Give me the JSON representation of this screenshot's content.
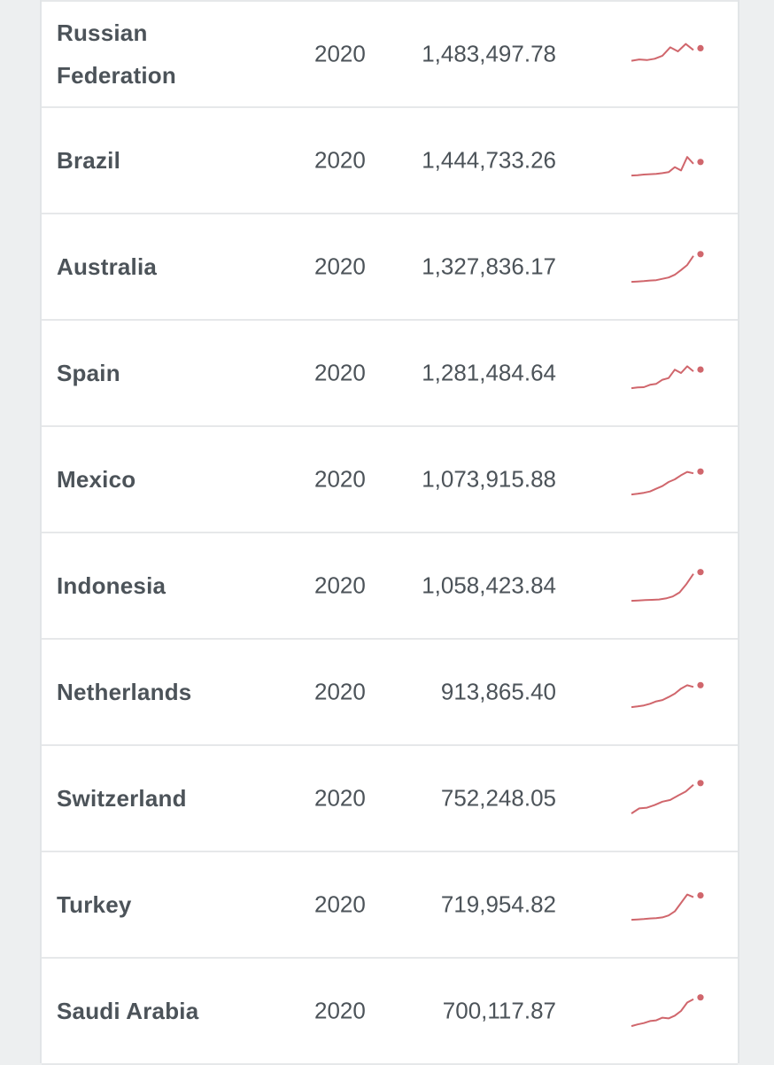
{
  "table": {
    "rows": [
      {
        "country": "Russian Federation",
        "year": "2020",
        "value": "1,483,497.78",
        "trend": [
          0.3,
          0.34,
          0.32,
          0.36,
          0.45,
          0.7,
          0.58,
          0.8,
          0.62
        ]
      },
      {
        "country": "Brazil",
        "year": "2020",
        "value": "1,444,733.26",
        "trend": [
          0.05,
          0.06,
          0.08,
          0.09,
          0.1,
          0.12,
          0.15,
          0.3,
          0.2,
          0.6,
          0.4
        ]
      },
      {
        "country": "Australia",
        "year": "2020",
        "value": "1,327,836.17",
        "trend": [
          0.05,
          0.06,
          0.07,
          0.09,
          0.1,
          0.14,
          0.18,
          0.26,
          0.4,
          0.55,
          0.82
        ]
      },
      {
        "country": "Spain",
        "year": "2020",
        "value": "1,281,484.64",
        "trend": [
          0.05,
          0.07,
          0.08,
          0.15,
          0.18,
          0.3,
          0.35,
          0.6,
          0.5,
          0.7,
          0.55
        ]
      },
      {
        "country": "Mexico",
        "year": "2020",
        "value": "1,073,915.88",
        "trend": [
          0.05,
          0.07,
          0.1,
          0.14,
          0.22,
          0.3,
          0.42,
          0.5,
          0.62,
          0.72,
          0.68
        ]
      },
      {
        "country": "Indonesia",
        "year": "2020",
        "value": "1,058,423.84",
        "trend": [
          0.05,
          0.06,
          0.07,
          0.08,
          0.09,
          0.12,
          0.18,
          0.3,
          0.55,
          0.85
        ]
      },
      {
        "country": "Netherlands",
        "year": "2020",
        "value": "913,865.40",
        "trend": [
          0.05,
          0.07,
          0.1,
          0.15,
          0.22,
          0.26,
          0.35,
          0.45,
          0.6,
          0.7,
          0.65
        ]
      },
      {
        "country": "Switzerland",
        "year": "2020",
        "value": "752,248.05",
        "trend": [
          0.05,
          0.2,
          0.22,
          0.3,
          0.4,
          0.45,
          0.58,
          0.7,
          0.9
        ]
      },
      {
        "country": "Turkey",
        "year": "2020",
        "value": "719,954.82",
        "trend": [
          0.05,
          0.06,
          0.07,
          0.09,
          0.1,
          0.12,
          0.18,
          0.3,
          0.55,
          0.8,
          0.72
        ]
      },
      {
        "country": "Saudi Arabia",
        "year": "2020",
        "value": "700,117.87",
        "trend": [
          0.05,
          0.1,
          0.14,
          0.2,
          0.22,
          0.3,
          0.28,
          0.36,
          0.5,
          0.75,
          0.85
        ]
      }
    ]
  },
  "colors": {
    "sparkline": "#d0666c",
    "text": "#4c5359"
  }
}
